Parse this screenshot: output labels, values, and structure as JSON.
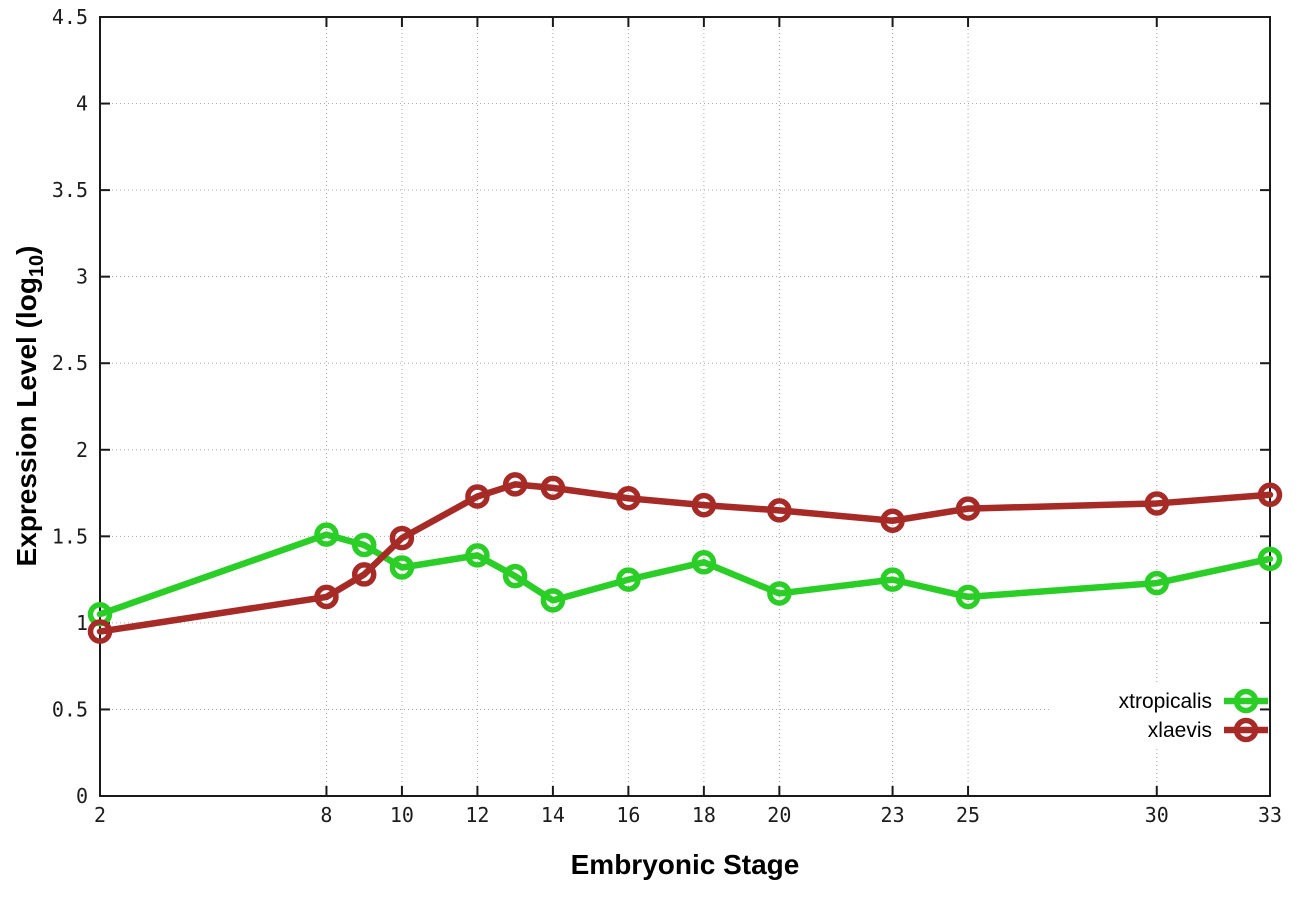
{
  "chart_data": {
    "type": "line",
    "title": "",
    "xlabel": "Embryonic Stage",
    "ylabel": {
      "prefix": "Expression Level (log",
      "sub": "10",
      "suffix": ")"
    },
    "xlim": [
      2,
      33
    ],
    "ylim": [
      0,
      4.5
    ],
    "grid": true,
    "legend_position": "bottom-right-inside",
    "x": [
      2,
      8,
      9,
      10,
      12,
      13,
      14,
      16,
      18,
      20,
      23,
      25,
      30,
      33
    ],
    "x_tick_labels": [
      "2",
      "8",
      "10",
      "12",
      "14",
      "16",
      "18",
      "20",
      "23",
      "25",
      "30",
      "33"
    ],
    "y_tick_labels": [
      "0",
      "0.5",
      "1",
      "1.5",
      "2",
      "2.5",
      "3",
      "3.5",
      "4",
      "4.5"
    ],
    "series": [
      {
        "name": "xtropicalis",
        "color": "#2ace26",
        "marker": "open-circle",
        "values": [
          1.05,
          1.51,
          1.45,
          1.32,
          1.39,
          1.27,
          1.13,
          1.25,
          1.35,
          1.17,
          1.25,
          1.15,
          1.23,
          1.37
        ]
      },
      {
        "name": "xlaevis",
        "color": "#a62a26",
        "marker": "open-circle",
        "values": [
          0.95,
          1.15,
          1.28,
          1.49,
          1.73,
          1.8,
          1.78,
          1.72,
          1.68,
          1.65,
          1.59,
          1.66,
          1.69,
          1.74
        ]
      }
    ]
  },
  "colors": {
    "background": "#ffffff",
    "border": "#1a1a1a",
    "gridline": "#aaaaaa",
    "tick_text": "#1c1c1c"
  }
}
